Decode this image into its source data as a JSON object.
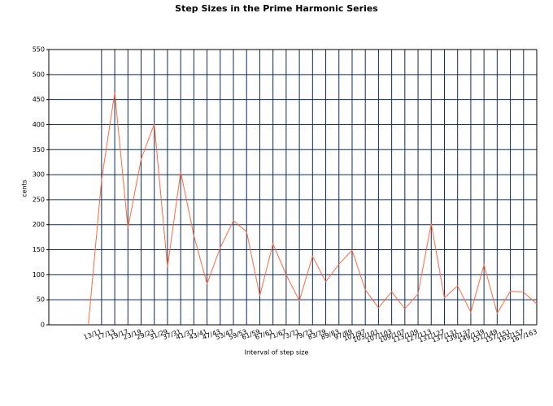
{
  "chart_data": {
    "type": "line",
    "title": "Step Sizes in the Prime Harmonic Series",
    "x_label": "Interval of step size",
    "y_label": "cents",
    "categories": [
      null,
      "13/11",
      "17/13",
      "19/17",
      "23/19",
      "29/23",
      "31/29",
      "37/31",
      "41/37",
      "43/41",
      "47/43",
      "53/47",
      "59/53",
      "61/59",
      "67/61",
      "71/67",
      "73/71",
      "79/73",
      "83/79",
      "89/83",
      "97/89",
      "101/97",
      "103/101",
      "107/103",
      "109/107",
      "113/109",
      "127/113",
      "131/127",
      "137/131",
      "139/137",
      "149/139",
      "151/149",
      "157/151",
      "163/157",
      "167/163"
    ],
    "values": [
      0,
      289,
      464,
      193,
      331,
      401,
      115,
      306,
      178,
      82,
      154,
      208,
      186,
      58,
      162,
      100,
      48,
      137,
      86,
      121,
      149,
      70,
      34,
      66,
      32,
      62,
      202,
      54,
      78,
      25,
      120,
      23,
      67,
      65,
      42
    ],
    "color": "#ff6a3d",
    "grid_color": "#0d2c5c",
    "ylim": [
      0,
      550
    ],
    "yticks": [
      0,
      50,
      100,
      150,
      200,
      250,
      300,
      350,
      400,
      450,
      500,
      550
    ],
    "grid": true
  }
}
